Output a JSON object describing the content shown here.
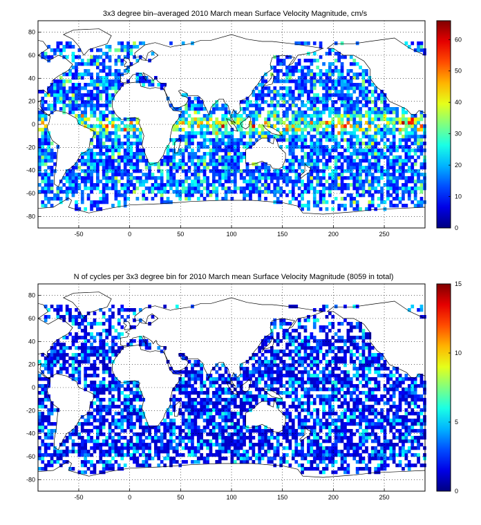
{
  "figure": {
    "background": "#ffffff"
  },
  "chart_data": [
    {
      "type": "heatmap",
      "title": "3x3 degree bin–averaged 2010 March mean Surface Velocity Magnitude, cm/s",
      "xlabel": "",
      "ylabel": "",
      "xlim": [
        -90,
        290
      ],
      "ylim": [
        -90,
        90
      ],
      "x_ticks": [
        -50,
        0,
        50,
        100,
        150,
        200,
        250
      ],
      "y_ticks": [
        80,
        60,
        40,
        20,
        0,
        -20,
        -40,
        -60,
        -80
      ],
      "grid": "dotted",
      "bin_size_deg": 3,
      "colormap": "jet",
      "colorbar": {
        "min": 0,
        "max": 66,
        "ticks": [
          0,
          10,
          20,
          30,
          40,
          50,
          60
        ]
      }
    },
    {
      "type": "heatmap",
      "title": "N of cycles per 3x3 degree bin for 2010 March mean Surface Velocity Magnitude (8059 in total)",
      "xlabel": "",
      "ylabel": "",
      "xlim": [
        -90,
        290
      ],
      "ylim": [
        -90,
        90
      ],
      "x_ticks": [
        -50,
        0,
        50,
        100,
        150,
        200,
        250
      ],
      "y_ticks": [
        80,
        60,
        40,
        20,
        0,
        -20,
        -40,
        -60,
        -80
      ],
      "grid": "dotted",
      "bin_size_deg": 3,
      "colormap": "jet",
      "colorbar": {
        "min": 0,
        "max": 15,
        "ticks": [
          0,
          5,
          10,
          15
        ]
      }
    }
  ]
}
